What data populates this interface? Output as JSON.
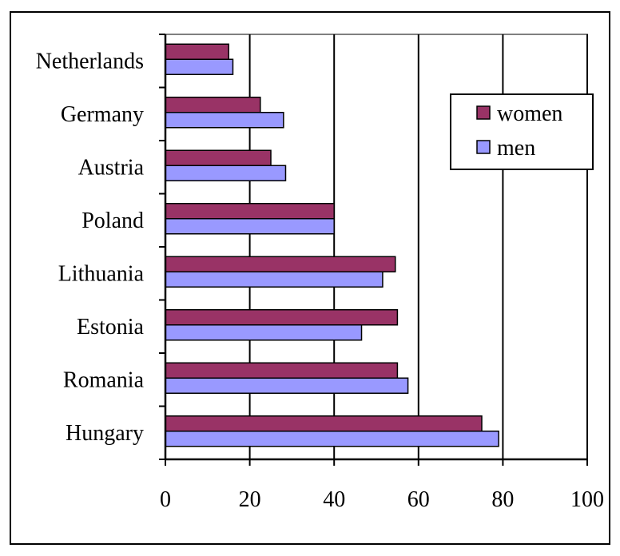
{
  "chart_data": {
    "type": "bar",
    "orientation": "horizontal",
    "categories": [
      "Netherlands",
      "Germany",
      "Austria",
      "Poland",
      "Lithuania",
      "Estonia",
      "Romania",
      "Hungary"
    ],
    "series": [
      {
        "name": "women",
        "color": "#993366",
        "values": [
          15,
          22.5,
          25,
          40,
          54.5,
          55,
          55,
          75
        ]
      },
      {
        "name": "men",
        "color": "#9999ff",
        "values": [
          16,
          28,
          28.5,
          40,
          51.5,
          46.5,
          57.5,
          79
        ]
      }
    ],
    "xlim": [
      0,
      100
    ],
    "xticks": [
      0,
      20,
      40,
      60,
      80,
      100
    ],
    "grid": true,
    "legend": "top-right"
  }
}
